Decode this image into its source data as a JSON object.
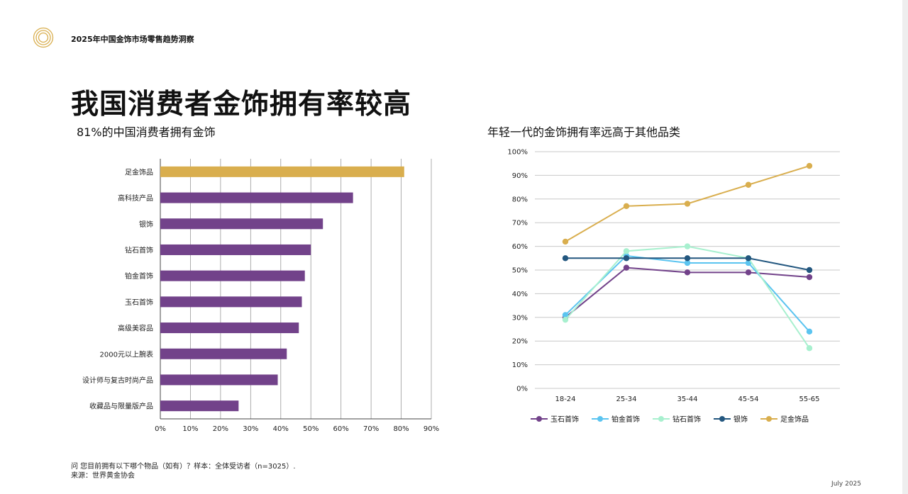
{
  "header": {
    "report_title": "2025年中国金饰市场零售趋势洞察"
  },
  "main_title": "我国消费者金饰拥有率较高",
  "left_subtitle": "81%的中国消费者拥有金饰",
  "right_subtitle": "年轻一代的金饰拥有率远高于其他品类",
  "footnote": {
    "question": "问 您目前拥有以下哪个物品（如有）？样本：全体受访者（n=3025）.",
    "source": "来源：世界黄金协会"
  },
  "date": "July 2025",
  "colors": {
    "gold": "#D9AE4E",
    "purple": "#72428A",
    "light_blue": "#5BC4F0",
    "mint": "#A8F0CF",
    "dark_blue": "#23577F",
    "grid": "#c8c8c8"
  },
  "chart_data": [
    {
      "type": "bar",
      "orientation": "horizontal",
      "categories": [
        "足金饰品",
        "高科技产品",
        "银饰",
        "钻石首饰",
        "铂金首饰",
        "玉石首饰",
        "高级美容品",
        "2000元以上腕表",
        "设计师与复古时尚产品",
        "收藏品与限量版产品"
      ],
      "values": [
        81,
        64,
        54,
        50,
        48,
        47,
        46,
        42,
        39,
        26
      ],
      "highlight_index": 0,
      "xticks": [
        "0%",
        "10%",
        "20%",
        "30%",
        "40%",
        "50%",
        "60%",
        "70%",
        "80%",
        "90%"
      ],
      "xlim": [
        0,
        90
      ]
    },
    {
      "type": "line",
      "x": [
        "18-24",
        "25-34",
        "35-44",
        "45-54",
        "55-65"
      ],
      "yticks": [
        "0%",
        "10%",
        "20%",
        "30%",
        "40%",
        "50%",
        "60%",
        "70%",
        "80%",
        "90%",
        "100%"
      ],
      "ylim": [
        0,
        100
      ],
      "legend_position": "bottom",
      "series": [
        {
          "name": "玉石首饰",
          "color": "#72428A",
          "values": [
            30,
            51,
            49,
            49,
            47
          ]
        },
        {
          "name": "铂金首饰",
          "color": "#5BC4F0",
          "values": [
            31,
            56,
            53,
            53,
            24
          ]
        },
        {
          "name": "钻石首饰",
          "color": "#A8F0CF",
          "values": [
            29,
            58,
            60,
            55,
            17
          ]
        },
        {
          "name": "银饰",
          "color": "#23577F",
          "values": [
            55,
            55,
            55,
            55,
            50
          ]
        },
        {
          "name": "足金饰品",
          "color": "#D9AE4E",
          "values": [
            62,
            77,
            78,
            86,
            94
          ]
        }
      ]
    }
  ]
}
